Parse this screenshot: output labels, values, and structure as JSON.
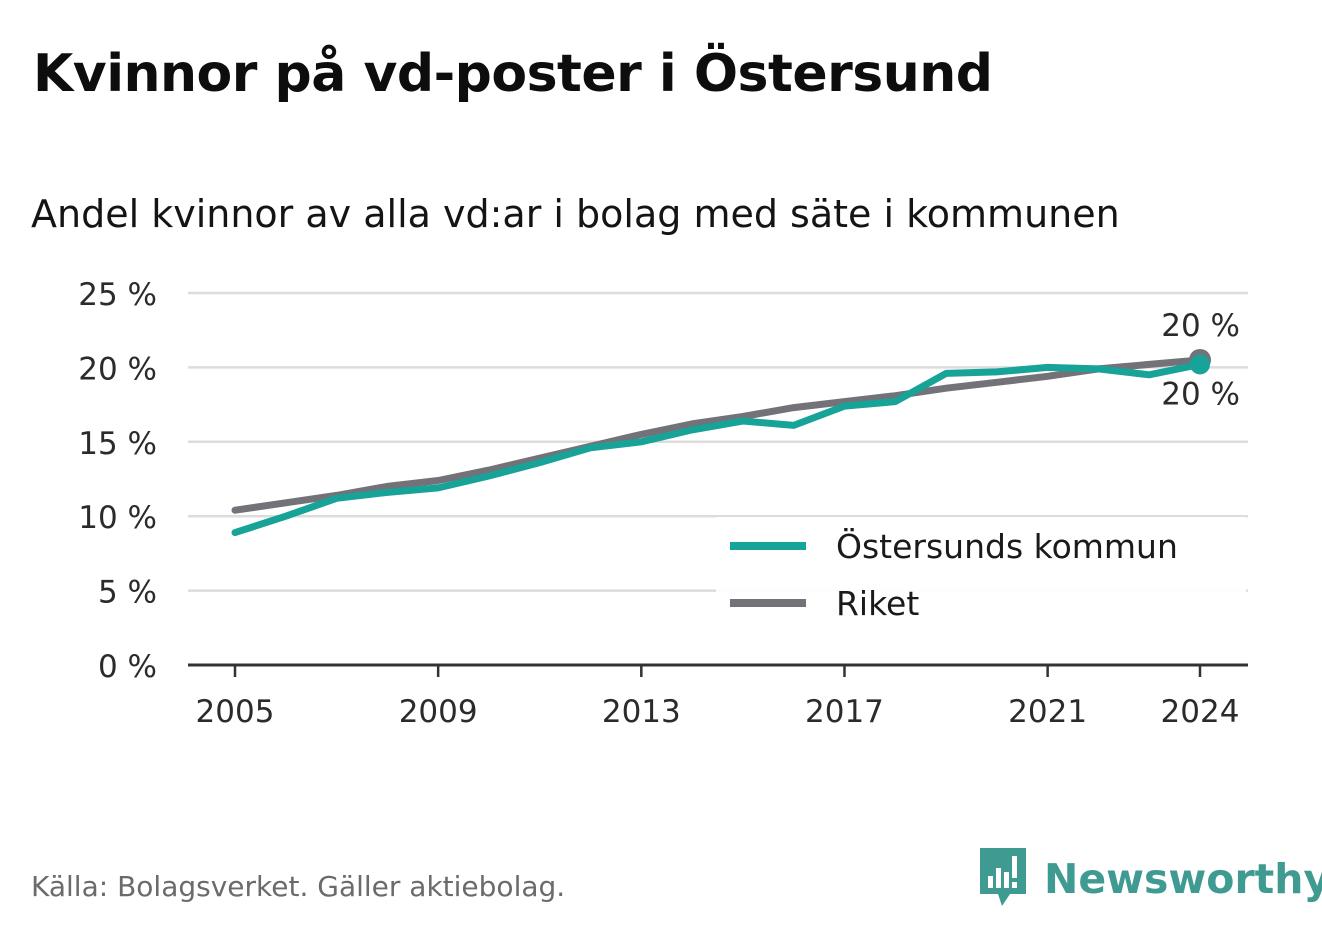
{
  "title": "Kvinnor på vd-poster i Östersund",
  "subtitle": "Andel kvinnor av alla vd:ar i bolag med säte i kommunen",
  "source": "Källa: Bolagsverket. Gäller aktiebolag.",
  "brand": {
    "name": "Newsworthy",
    "icon": "newsworthy-logo-icon"
  },
  "colors": {
    "ostersund": "#17a398",
    "riket": "#737278",
    "grid": "#dcdcdc",
    "axis": "#333333"
  },
  "chart_data": {
    "type": "line",
    "title": "Kvinnor på vd-poster i Östersund",
    "xlabel": "",
    "ylabel": "",
    "ylim": [
      0,
      25
    ],
    "xlim": [
      2005,
      2024
    ],
    "yticks": [
      0,
      5,
      10,
      15,
      20,
      25
    ],
    "ytick_labels": [
      "0 %",
      "5 %",
      "10 %",
      "15 %",
      "20 %",
      "25 %"
    ],
    "xticks": [
      2005,
      2009,
      2013,
      2017,
      2021,
      2024
    ],
    "xtick_labels": [
      "2005",
      "2009",
      "2013",
      "2017",
      "2021",
      "2024"
    ],
    "x": [
      2005,
      2006,
      2007,
      2008,
      2009,
      2010,
      2011,
      2012,
      2013,
      2014,
      2015,
      2016,
      2017,
      2018,
      2019,
      2020,
      2021,
      2022,
      2023,
      2024
    ],
    "series": [
      {
        "name": "Riket",
        "color": "#737278",
        "values": [
          10.4,
          10.9,
          11.4,
          12.0,
          12.4,
          13.1,
          13.9,
          14.7,
          15.5,
          16.2,
          16.7,
          17.3,
          17.7,
          18.1,
          18.6,
          19.0,
          19.4,
          19.9,
          20.2,
          20.5
        ],
        "end_label": "20 %"
      },
      {
        "name": "Östersunds kommun",
        "color": "#17a398",
        "values": [
          8.9,
          10.0,
          11.2,
          11.6,
          11.9,
          12.7,
          13.6,
          14.6,
          15.0,
          15.8,
          16.4,
          16.1,
          17.4,
          17.7,
          19.6,
          19.7,
          20.0,
          19.9,
          19.5,
          20.2
        ],
        "end_label": "20 %"
      }
    ],
    "legend": {
      "position": "lower-right",
      "entries": [
        "Östersunds kommun",
        "Riket"
      ]
    },
    "grid": true
  }
}
